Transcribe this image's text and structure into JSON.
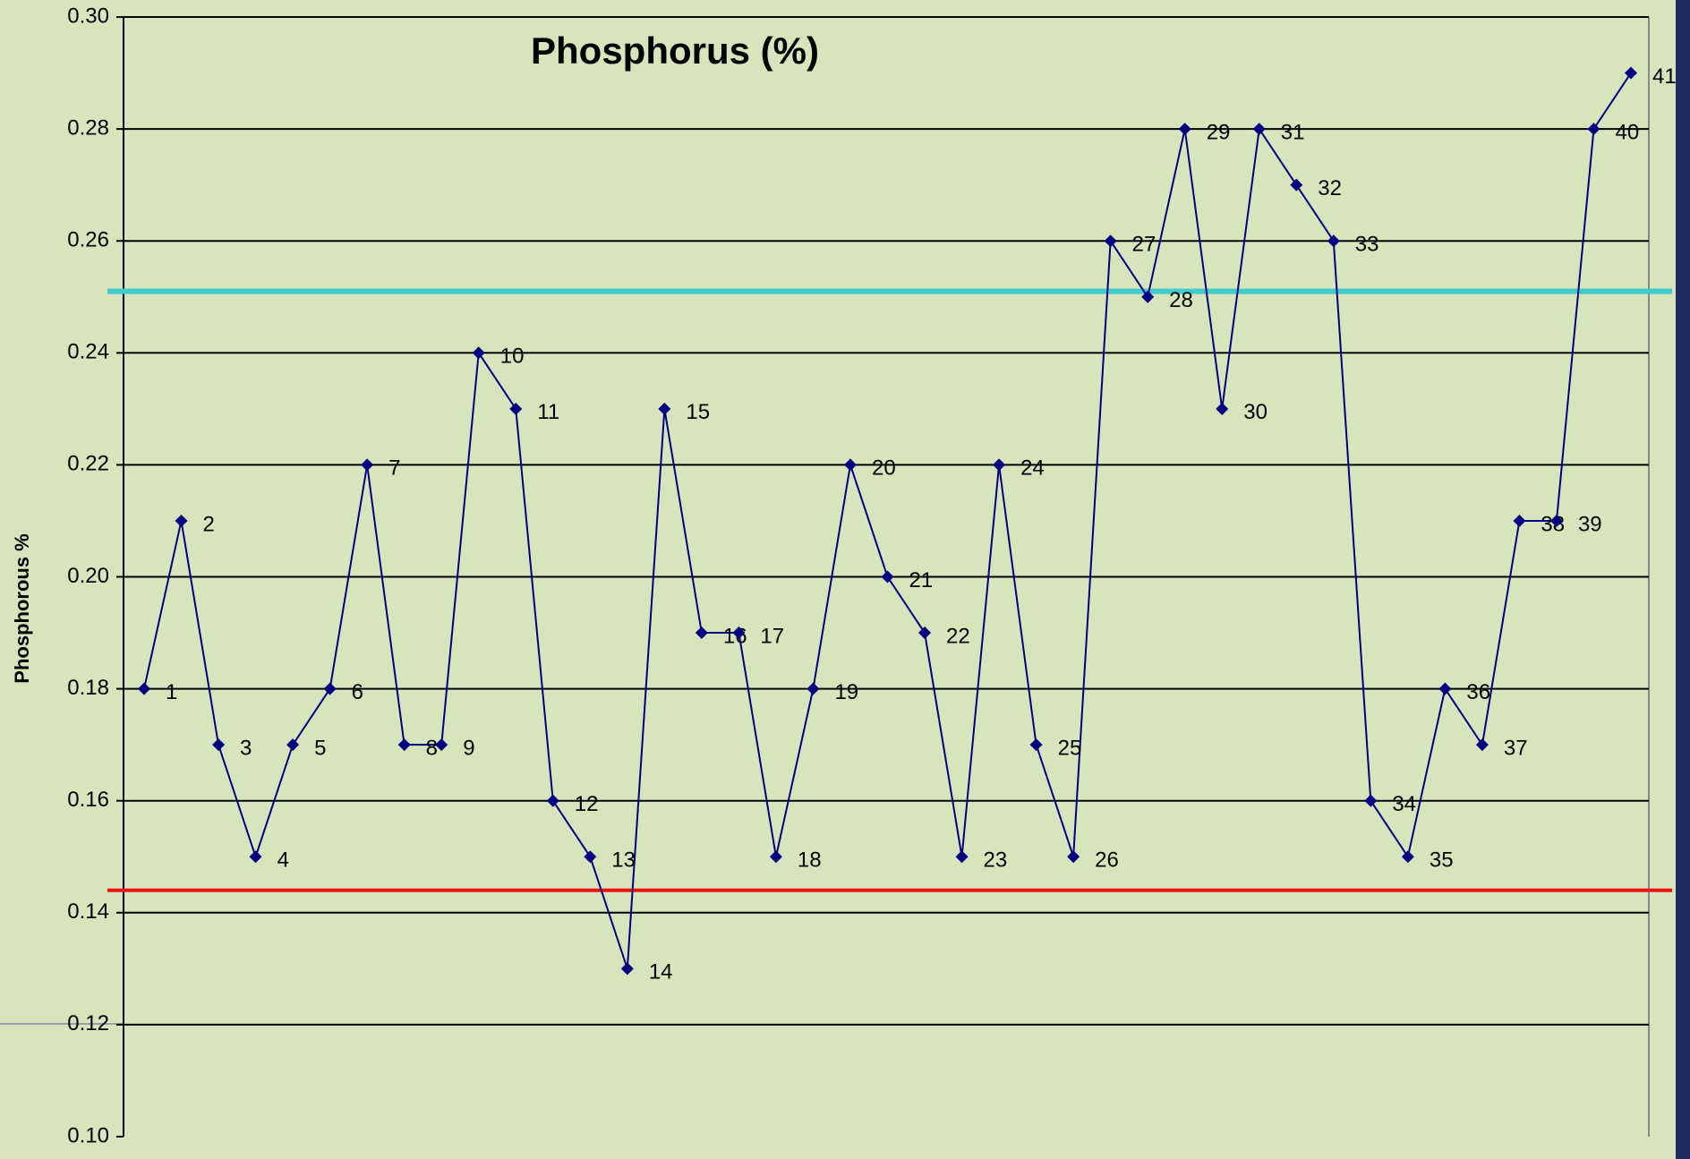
{
  "chart_data": {
    "type": "line",
    "title": "Phosphorus (%)",
    "y_label": "Phosphorous %",
    "categories": [
      "1",
      "2",
      "3",
      "4",
      "5",
      "6",
      "7",
      "8",
      "9",
      "10",
      "11",
      "12",
      "13",
      "14",
      "15",
      "16",
      "17",
      "18",
      "19",
      "20",
      "21",
      "22",
      "23",
      "24",
      "25",
      "26",
      "27",
      "28",
      "29",
      "30",
      "31",
      "32",
      "33",
      "34",
      "35",
      "36",
      "37",
      "38",
      "39",
      "40",
      "41"
    ],
    "series": [
      {
        "color": "#000080",
        "values": [
          0.18,
          0.21,
          0.17,
          0.15,
          0.17,
          0.18,
          0.22,
          0.17,
          0.17,
          0.24,
          0.23,
          0.16,
          0.15,
          0.13,
          0.23,
          0.19,
          0.19,
          0.15,
          0.18,
          0.22,
          0.2,
          0.19,
          0.15,
          0.22,
          0.17,
          0.15,
          0.26,
          0.25,
          0.28,
          0.23,
          0.28,
          0.27,
          0.26,
          0.16,
          0.15,
          0.18,
          0.17,
          0.21,
          0.21,
          0.28,
          0.29
        ]
      }
    ],
    "reference_lines": [
      {
        "value": 0.251,
        "color": "#40cccc"
      },
      {
        "value": 0.144,
        "color": "#ee1111"
      }
    ],
    "ylim": [
      0.1,
      0.3
    ],
    "yticks": [
      {
        "value": 0.1,
        "label": "0.10"
      },
      {
        "value": 0.12,
        "label": "0.12"
      },
      {
        "value": 0.14,
        "label": "0.14"
      },
      {
        "value": 0.16,
        "label": "0.16"
      },
      {
        "value": 0.18,
        "label": "0.18"
      },
      {
        "value": 0.2,
        "label": "0.20"
      },
      {
        "value": 0.22,
        "label": "0.22"
      },
      {
        "value": 0.24,
        "label": "0.24"
      },
      {
        "value": 0.26,
        "label": "0.26"
      },
      {
        "value": 0.28,
        "label": "0.28"
      },
      {
        "value": 0.3,
        "label": "0.30"
      }
    ],
    "grid": true
  }
}
